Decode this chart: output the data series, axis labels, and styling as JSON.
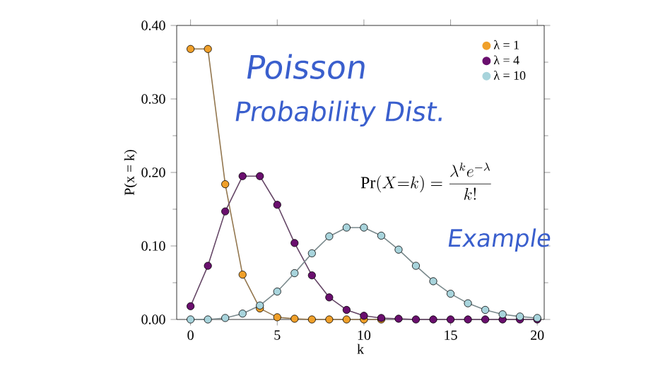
{
  "chart_data": {
    "type": "line",
    "xlabel": "k",
    "ylabel": "P(x = k)",
    "x": [
      0,
      1,
      2,
      3,
      4,
      5,
      6,
      7,
      8,
      9,
      10,
      11,
      12,
      13,
      14,
      15,
      16,
      17,
      18,
      19,
      20
    ],
    "series": [
      {
        "name": "λ = 1",
        "color": "#f0a02a",
        "values": [
          0.368,
          0.368,
          0.184,
          0.061,
          0.015,
          0.003,
          0.001,
          0,
          0,
          0,
          0,
          0,
          null,
          null,
          null,
          null,
          null,
          null,
          null,
          null,
          null
        ]
      },
      {
        "name": "λ = 4",
        "color": "#6a0f6e",
        "values": [
          0.018,
          0.073,
          0.147,
          0.195,
          0.195,
          0.156,
          0.104,
          0.06,
          0.03,
          0.013,
          0.005,
          0.002,
          0.001,
          0,
          0,
          0,
          0,
          0,
          0,
          0,
          0
        ]
      },
      {
        "name": "λ = 10",
        "color": "#a8d4dc",
        "values": [
          0,
          0,
          0.002,
          0.008,
          0.019,
          0.038,
          0.063,
          0.09,
          0.113,
          0.125,
          0.125,
          0.114,
          0.095,
          0.073,
          0.052,
          0.035,
          0.022,
          0.013,
          0.007,
          0.004,
          0.002
        ]
      }
    ],
    "xlim": [
      -0.8,
      20.4
    ],
    "ylim": [
      0,
      0.4
    ],
    "xticks": [
      0,
      5,
      10,
      15,
      20
    ],
    "yticks": [
      {
        "value": 0,
        "label": "0.00"
      },
      {
        "value": 0.1,
        "label": "0.10"
      },
      {
        "value": 0.2,
        "label": "0.20"
      },
      {
        "value": 0.3,
        "label": "0.30"
      },
      {
        "value": 0.4,
        "label": "0.40"
      }
    ],
    "marker": "circle",
    "line_style": "solid",
    "grid": false,
    "legend": "top right",
    "annotations": [
      "Poisson",
      "Probability Dist.",
      "\\Pr(X{=}k) = \\frac{\\lambda^k e^{-\\lambda}}{k!}",
      "Example"
    ]
  }
}
